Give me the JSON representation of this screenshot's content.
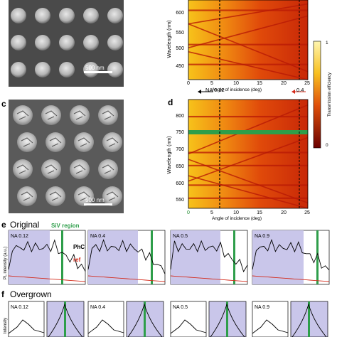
{
  "panel_c": {
    "letter": "c",
    "scalebar": "500 nm"
  },
  "panel_a_top": {
    "scalebar": "500 nm"
  },
  "panel_b_top": {
    "ylabel": "Wavelength (nm)",
    "xlabel": "Angle of incidence (deg)",
    "yticks": [
      "600",
      "550",
      "500",
      "450"
    ],
    "xticks": [
      "0",
      "5",
      "10",
      "15",
      "20",
      "25"
    ]
  },
  "colorbar": {
    "label": "Transmission efficiency",
    "top": "1",
    "bottom": "0"
  },
  "na_marks": {
    "left": "NA  0.12",
    "right": "0.4"
  },
  "panel_d": {
    "letter": "d",
    "ylabel": "Wavelength (nm)",
    "xlabel": "Angle of incidence (deg)",
    "yticks": [
      "800",
      "750",
      "700",
      "650",
      "600",
      "550"
    ],
    "xticks": [
      "0",
      "5",
      "10",
      "15",
      "20",
      "25"
    ]
  },
  "panel_e": {
    "letter": "e",
    "title": "Original",
    "siv": "SiV region",
    "ylabel": "PL intensity (a.u.)",
    "legend_phc": "PhC",
    "legend_ref": "ref",
    "boxes": [
      "NA 0.12",
      "NA 0.4",
      "NA 0.5",
      "NA 0.9"
    ]
  },
  "panel_f": {
    "letter": "f",
    "title": "Overgrown",
    "ylabel": "Intensity",
    "boxes": [
      "NA 0.12",
      "NA 0.4",
      "NA 0.5",
      "NA 0.9"
    ]
  },
  "colors": {
    "green": "#2e9e4a",
    "lavender": "#c9c6ea",
    "phc": "#000000",
    "ref": "#d42a1a"
  }
}
